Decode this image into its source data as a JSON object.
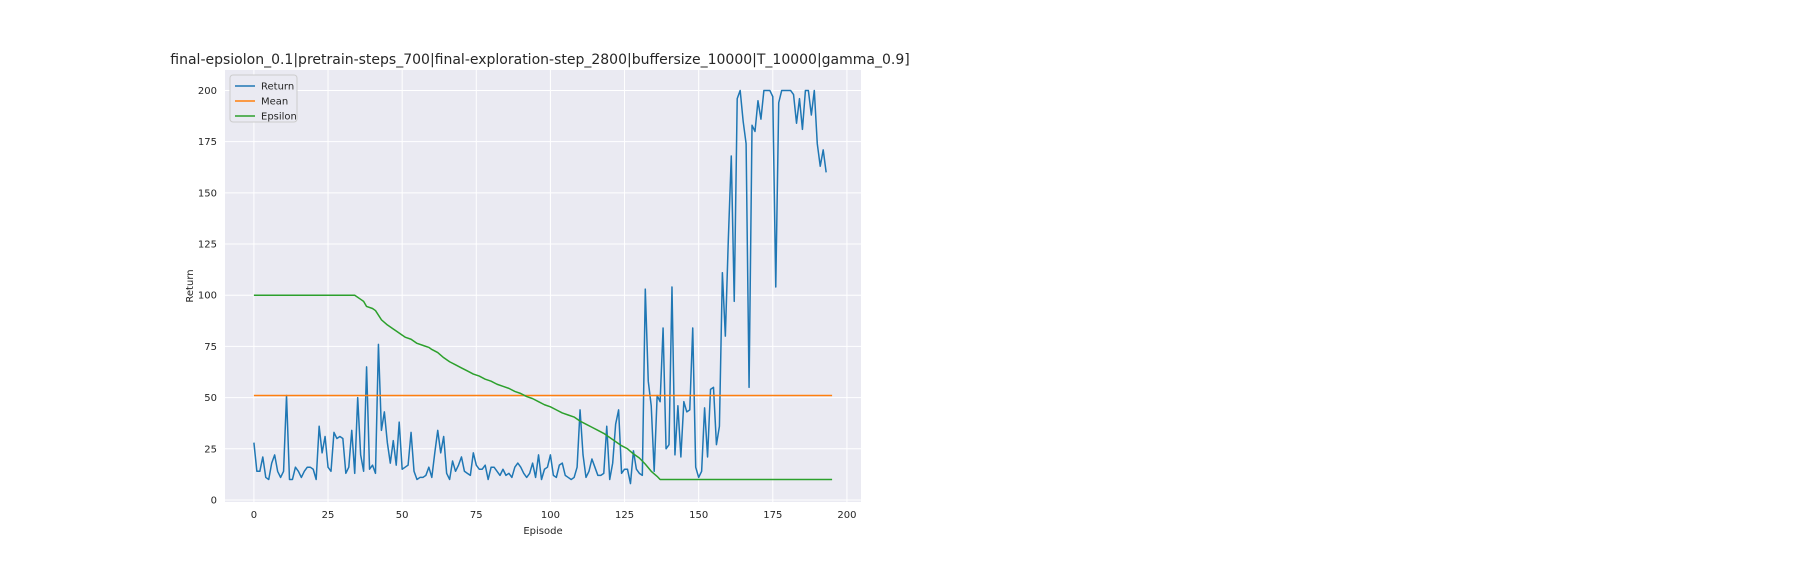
{
  "chart_data": {
    "type": "line",
    "title": "final-epsiolon_0.1|pretrain-steps_700|final-exploration-step_2800|buffersize_10000|T_10000|gamma_0.9]",
    "xlabel": "Episode",
    "ylabel": "Return",
    "xlim": [
      -9.75,
      204.75
    ],
    "ylim": [
      -1,
      210
    ],
    "x_ticks": [
      0,
      25,
      50,
      75,
      100,
      125,
      150,
      175,
      200
    ],
    "y_ticks": [
      0,
      25,
      50,
      75,
      100,
      125,
      150,
      175,
      200
    ],
    "grid": true,
    "legend_position": "upper-left",
    "background": "#eaeaf2",
    "series": [
      {
        "name": "Return",
        "color": "#1f77b4",
        "values": [
          28,
          14,
          14,
          21,
          11,
          10,
          18,
          22,
          14,
          11,
          14,
          51,
          10,
          10,
          16,
          14,
          11,
          14,
          16,
          16,
          15,
          10,
          36,
          23,
          31,
          16,
          14,
          33,
          30,
          31,
          30,
          13,
          16,
          34,
          13,
          50,
          22,
          14,
          65,
          15,
          17,
          13,
          76,
          34,
          43,
          28,
          18,
          29,
          17,
          38,
          15,
          16,
          17,
          33,
          14,
          10,
          11,
          11,
          12,
          16,
          11,
          23,
          34,
          23,
          31,
          13,
          10,
          19,
          14,
          17,
          21,
          14,
          13,
          12,
          23,
          17,
          15,
          15,
          17,
          10,
          16,
          16,
          14,
          12,
          15,
          12,
          13,
          11,
          16,
          18,
          16,
          13,
          11,
          13,
          18,
          11,
          22,
          10,
          15,
          16,
          22,
          12,
          11,
          17,
          18,
          12,
          11,
          10,
          11,
          16,
          44,
          22,
          11,
          14,
          20,
          16,
          12,
          12,
          13,
          36,
          10,
          18,
          37,
          44,
          13,
          15,
          15,
          8,
          24,
          15,
          13,
          12,
          103,
          58,
          46,
          14,
          51,
          48,
          84,
          25,
          27,
          104,
          22,
          46,
          21,
          48,
          43,
          44,
          84,
          16,
          11,
          14,
          45,
          21,
          54,
          55,
          27,
          36,
          111,
          80,
          127,
          168,
          97,
          196,
          200,
          185,
          174,
          55,
          183,
          180,
          195,
          186,
          200,
          200,
          200,
          197,
          104,
          194,
          200,
          200,
          200,
          200,
          198,
          184,
          196,
          181,
          200,
          200,
          188,
          200,
          174,
          163,
          171,
          160
        ]
      },
      {
        "name": "Mean",
        "color": "#ff7f0e",
        "x_range": [
          0,
          195
        ],
        "values": [
          51,
          51
        ]
      },
      {
        "name": "Epsilon",
        "color": "#2ca02c",
        "x": [
          0,
          34,
          36,
          37,
          38,
          40,
          41,
          43,
          45,
          47,
          48,
          50,
          51,
          53,
          55,
          57,
          59,
          60,
          62,
          64,
          66,
          68,
          70,
          72,
          74,
          76,
          78,
          80,
          82,
          84,
          86,
          88,
          90,
          92,
          94,
          96,
          98,
          100,
          102,
          104,
          106,
          108,
          110,
          112,
          114,
          116,
          118,
          120,
          122,
          124,
          126,
          128,
          130,
          132,
          134,
          136,
          137,
          195
        ],
        "values": [
          100,
          100,
          98,
          97,
          94.5,
          93.5,
          92.5,
          88,
          85.5,
          83.5,
          82.5,
          80.5,
          79.5,
          78.5,
          76.5,
          75.5,
          74.5,
          73.5,
          72,
          69.5,
          67.5,
          66,
          64.5,
          63,
          61.5,
          60.5,
          59,
          58,
          56.5,
          55.5,
          54.5,
          53,
          52,
          50.5,
          49.5,
          48,
          46.5,
          45.5,
          44,
          42.5,
          41.5,
          40.5,
          38.5,
          37,
          35.5,
          34,
          32.5,
          30.5,
          28.5,
          26.5,
          25,
          22.5,
          20.5,
          17.5,
          14,
          11.5,
          10,
          10
        ]
      }
    ]
  }
}
